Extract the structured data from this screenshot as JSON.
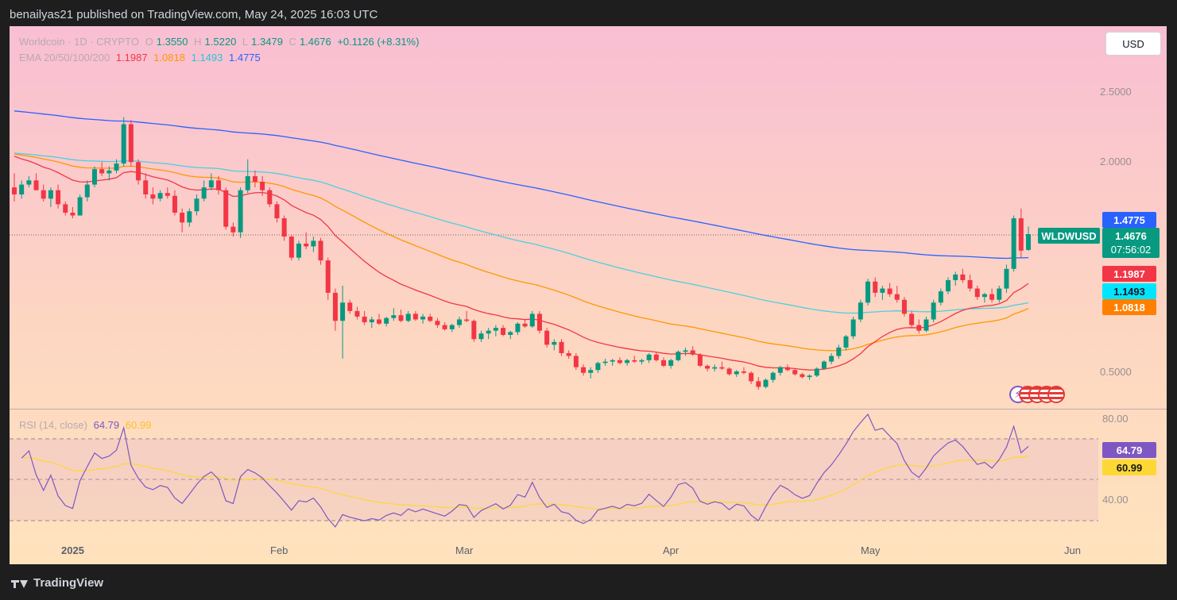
{
  "header": {
    "published": "benailyas21 published on TradingView.com, May 24, 2025 16:03 UTC"
  },
  "legend": {
    "symbol": "Worldcoin · 1D · CRYPTO",
    "o_label": "O",
    "o": "1.3550",
    "h_label": "H",
    "h": "1.5220",
    "l_label": "L",
    "l": "1.3479",
    "c_label": "C",
    "c": "1.4676",
    "change": "+0.1126 (+8.31%)",
    "ema_label": "EMA 20/50/100/200",
    "ema20": "1.1987",
    "ema50": "1.0818",
    "ema100": "1.1493",
    "ema200": "1.4775",
    "rsi_label": "RSI (14, close)",
    "rsi": "64.79",
    "rsi_ma": "60.99"
  },
  "toolbar": {
    "currency": "USD"
  },
  "price_axis": [
    "2.5000",
    "2.0000",
    "0.5000"
  ],
  "rsi_axis": [
    "80.00",
    "40.00"
  ],
  "time_axis": [
    "2025",
    "Feb",
    "Mar",
    "Apr",
    "May",
    "Jun"
  ],
  "tags": {
    "ema200": "1.4775",
    "symbol": "WLDWUSD",
    "price": "1.4676",
    "countdown": "07:56:02",
    "ema20": "1.1987",
    "ema100": "1.1493",
    "ema50": "1.0818",
    "rsi": "64.79",
    "rsi_ma": "60.99"
  },
  "colors": {
    "up": "#089981",
    "down": "#f23645",
    "ema20": "#f23645",
    "ema50": "#ff9800",
    "ema100": "#4dd0e1",
    "ema200": "#2962ff",
    "rsi": "#7e57c2",
    "rsi_ma": "#fdd835"
  },
  "footer": {
    "brand": "TradingView"
  },
  "chart_data": [
    {
      "type": "candlestick",
      "title": "Worldcoin · 1D · CRYPTO",
      "x_labels": [
        "2025",
        "Feb",
        "Mar",
        "Apr",
        "May",
        "Jun"
      ],
      "price_ticks": [
        0.5,
        2.0,
        2.5
      ],
      "candles": [
        [
          1.8,
          1.9,
          1.7,
          1.75
        ],
        [
          1.75,
          1.85,
          1.72,
          1.82
        ],
        [
          1.82,
          1.88,
          1.8,
          1.85
        ],
        [
          1.85,
          1.9,
          1.78,
          1.78
        ],
        [
          1.78,
          1.82,
          1.7,
          1.72
        ],
        [
          1.72,
          1.8,
          1.66,
          1.78
        ],
        [
          1.78,
          1.82,
          1.65,
          1.68
        ],
        [
          1.68,
          1.7,
          1.6,
          1.62
        ],
        [
          1.62,
          1.66,
          1.58,
          1.6
        ],
        [
          1.6,
          1.75,
          1.6,
          1.73
        ],
        [
          1.73,
          1.85,
          1.7,
          1.82
        ],
        [
          1.82,
          1.95,
          1.8,
          1.93
        ],
        [
          1.93,
          1.98,
          1.88,
          1.9
        ],
        [
          1.9,
          1.95,
          1.85,
          1.92
        ],
        [
          1.92,
          2.0,
          1.9,
          1.97
        ],
        [
          1.97,
          2.3,
          1.95,
          2.25
        ],
        [
          2.25,
          2.28,
          1.95,
          1.98
        ],
        [
          1.98,
          2.0,
          1.82,
          1.85
        ],
        [
          1.85,
          1.9,
          1.72,
          1.75
        ],
        [
          1.75,
          1.8,
          1.68,
          1.72
        ],
        [
          1.72,
          1.78,
          1.7,
          1.76
        ],
        [
          1.76,
          1.8,
          1.72,
          1.74
        ],
        [
          1.74,
          1.78,
          1.6,
          1.62
        ],
        [
          1.62,
          1.65,
          1.48,
          1.55
        ],
        [
          1.55,
          1.65,
          1.52,
          1.63
        ],
        [
          1.63,
          1.75,
          1.6,
          1.72
        ],
        [
          1.72,
          1.85,
          1.7,
          1.8
        ],
        [
          1.8,
          1.9,
          1.78,
          1.85
        ],
        [
          1.85,
          1.88,
          1.75,
          1.78
        ],
        [
          1.78,
          1.8,
          1.5,
          1.52
        ],
        [
          1.52,
          1.55,
          1.45,
          1.48
        ],
        [
          1.48,
          1.8,
          1.44,
          1.78
        ],
        [
          1.78,
          2.0,
          1.76,
          1.88
        ],
        [
          1.88,
          1.92,
          1.8,
          1.84
        ],
        [
          1.84,
          1.88,
          1.74,
          1.78
        ],
        [
          1.78,
          1.8,
          1.66,
          1.68
        ],
        [
          1.68,
          1.7,
          1.55,
          1.58
        ],
        [
          1.58,
          1.6,
          1.42,
          1.45
        ],
        [
          1.45,
          1.46,
          1.28,
          1.3
        ],
        [
          1.3,
          1.42,
          1.28,
          1.4
        ],
        [
          1.4,
          1.48,
          1.36,
          1.38
        ],
        [
          1.38,
          1.45,
          1.34,
          1.42
        ],
        [
          1.42,
          1.44,
          1.25,
          1.28
        ],
        [
          1.28,
          1.3,
          1.0,
          1.05
        ],
        [
          1.05,
          1.08,
          0.78,
          0.85
        ],
        [
          0.85,
          1.1,
          0.58,
          0.98
        ],
        [
          0.98,
          1.0,
          0.9,
          0.92
        ],
        [
          0.92,
          0.95,
          0.86,
          0.88
        ],
        [
          0.88,
          0.92,
          0.82,
          0.84
        ],
        [
          0.84,
          0.88,
          0.8,
          0.86
        ],
        [
          0.86,
          0.9,
          0.82,
          0.83
        ],
        [
          0.83,
          0.88,
          0.81,
          0.87
        ],
        [
          0.87,
          0.94,
          0.85,
          0.89
        ],
        [
          0.89,
          0.93,
          0.84,
          0.85
        ],
        [
          0.85,
          0.92,
          0.84,
          0.9
        ],
        [
          0.9,
          0.92,
          0.85,
          0.86
        ],
        [
          0.86,
          0.9,
          0.83,
          0.88
        ],
        [
          0.88,
          0.9,
          0.84,
          0.85
        ],
        [
          0.85,
          0.87,
          0.8,
          0.82
        ],
        [
          0.82,
          0.84,
          0.78,
          0.79
        ],
        [
          0.79,
          0.83,
          0.77,
          0.82
        ],
        [
          0.82,
          0.88,
          0.8,
          0.86
        ],
        [
          0.86,
          0.92,
          0.84,
          0.85
        ],
        [
          0.85,
          0.86,
          0.7,
          0.72
        ],
        [
          0.72,
          0.78,
          0.7,
          0.76
        ],
        [
          0.76,
          0.8,
          0.72,
          0.78
        ],
        [
          0.78,
          0.82,
          0.74,
          0.8
        ],
        [
          0.8,
          0.82,
          0.74,
          0.75
        ],
        [
          0.75,
          0.78,
          0.72,
          0.77
        ],
        [
          0.77,
          0.84,
          0.75,
          0.83
        ],
        [
          0.83,
          0.86,
          0.8,
          0.81
        ],
        [
          0.81,
          0.92,
          0.8,
          0.9
        ],
        [
          0.9,
          0.92,
          0.76,
          0.78
        ],
        [
          0.78,
          0.8,
          0.66,
          0.68
        ],
        [
          0.68,
          0.72,
          0.64,
          0.7
        ],
        [
          0.7,
          0.72,
          0.6,
          0.62
        ],
        [
          0.62,
          0.64,
          0.58,
          0.6
        ],
        [
          0.6,
          0.62,
          0.5,
          0.52
        ],
        [
          0.52,
          0.54,
          0.46,
          0.48
        ],
        [
          0.48,
          0.52,
          0.44,
          0.5
        ],
        [
          0.5,
          0.56,
          0.48,
          0.55
        ],
        [
          0.55,
          0.58,
          0.53,
          0.56
        ],
        [
          0.56,
          0.58,
          0.53,
          0.57
        ],
        [
          0.57,
          0.59,
          0.54,
          0.55
        ],
        [
          0.55,
          0.58,
          0.53,
          0.57
        ],
        [
          0.57,
          0.6,
          0.55,
          0.56
        ],
        [
          0.56,
          0.58,
          0.54,
          0.57
        ],
        [
          0.57,
          0.62,
          0.55,
          0.61
        ],
        [
          0.61,
          0.63,
          0.56,
          0.57
        ],
        [
          0.57,
          0.59,
          0.52,
          0.53
        ],
        [
          0.53,
          0.58,
          0.51,
          0.57
        ],
        [
          0.57,
          0.64,
          0.56,
          0.63
        ],
        [
          0.63,
          0.66,
          0.6,
          0.64
        ],
        [
          0.64,
          0.67,
          0.6,
          0.61
        ],
        [
          0.61,
          0.62,
          0.52,
          0.53
        ],
        [
          0.53,
          0.54,
          0.49,
          0.51
        ],
        [
          0.51,
          0.54,
          0.49,
          0.52
        ],
        [
          0.52,
          0.56,
          0.5,
          0.51
        ],
        [
          0.51,
          0.52,
          0.46,
          0.47
        ],
        [
          0.47,
          0.5,
          0.45,
          0.49
        ],
        [
          0.49,
          0.52,
          0.47,
          0.48
        ],
        [
          0.48,
          0.49,
          0.4,
          0.42
        ],
        [
          0.42,
          0.45,
          0.36,
          0.38
        ],
        [
          0.38,
          0.44,
          0.37,
          0.43
        ],
        [
          0.43,
          0.49,
          0.41,
          0.48
        ],
        [
          0.48,
          0.53,
          0.46,
          0.52
        ],
        [
          0.52,
          0.54,
          0.49,
          0.5
        ],
        [
          0.5,
          0.51,
          0.46,
          0.47
        ],
        [
          0.47,
          0.48,
          0.44,
          0.45
        ],
        [
          0.45,
          0.47,
          0.43,
          0.46
        ],
        [
          0.46,
          0.52,
          0.45,
          0.51
        ],
        [
          0.51,
          0.57,
          0.5,
          0.56
        ],
        [
          0.56,
          0.62,
          0.54,
          0.6
        ],
        [
          0.6,
          0.68,
          0.58,
          0.66
        ],
        [
          0.66,
          0.75,
          0.64,
          0.74
        ],
        [
          0.74,
          0.88,
          0.72,
          0.86
        ],
        [
          0.86,
          1.0,
          0.84,
          0.98
        ],
        [
          0.98,
          1.15,
          0.96,
          1.13
        ],
        [
          1.13,
          1.16,
          1.02,
          1.05
        ],
        [
          1.05,
          1.1,
          1.0,
          1.08
        ],
        [
          1.08,
          1.12,
          1.02,
          1.04
        ],
        [
          1.04,
          1.1,
          0.98,
          1.0
        ],
        [
          1.0,
          1.02,
          0.88,
          0.9
        ],
        [
          0.9,
          0.92,
          0.8,
          0.82
        ],
        [
          0.82,
          0.86,
          0.76,
          0.78
        ],
        [
          0.78,
          0.88,
          0.77,
          0.86
        ],
        [
          0.86,
          1.0,
          0.84,
          0.98
        ],
        [
          0.98,
          1.08,
          0.96,
          1.06
        ],
        [
          1.06,
          1.16,
          1.04,
          1.14
        ],
        [
          1.14,
          1.2,
          1.1,
          1.18
        ],
        [
          1.18,
          1.22,
          1.12,
          1.14
        ],
        [
          1.14,
          1.18,
          1.06,
          1.08
        ],
        [
          1.08,
          1.1,
          1.0,
          1.02
        ],
        [
          1.02,
          1.05,
          0.98,
          1.04
        ],
        [
          1.04,
          1.08,
          0.98,
          1.0
        ],
        [
          1.0,
          1.1,
          0.98,
          1.08
        ],
        [
          1.08,
          1.25,
          1.05,
          1.22
        ],
        [
          1.22,
          1.6,
          1.2,
          1.58
        ],
        [
          1.58,
          1.65,
          1.3,
          1.35
        ],
        [
          1.355,
          1.522,
          1.3479,
          1.4676
        ]
      ],
      "ema": {
        "ema20": 1.1987,
        "ema50": 1.0818,
        "ema100": 1.1493,
        "ema200": 1.4775
      }
    },
    {
      "type": "line",
      "title": "RSI (14, close)",
      "y_ticks": [
        40,
        80
      ],
      "series": [
        {
          "name": "RSI",
          "last": 64.79
        },
        {
          "name": "RSI-based MA",
          "last": 60.99
        }
      ]
    }
  ]
}
